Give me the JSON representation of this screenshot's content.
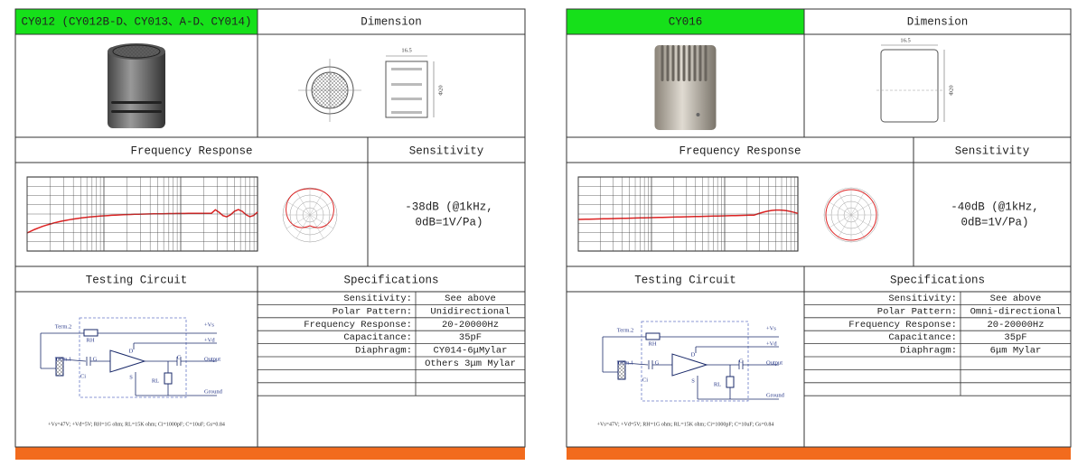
{
  "products": [
    {
      "model": "CY012 (CY012B-D、CY013、A-D、CY014)",
      "dimension_heading": "Dimension",
      "dimension_labels": [
        "16.5",
        "Φ20"
      ],
      "frequency_heading": "Frequency Response",
      "sensitivity_heading": "Sensitivity",
      "sensitivity": [
        "-38dB (@1kHz,",
        "0dB=1V/Pa)"
      ],
      "circuit_heading": "Testing Circuit",
      "specs_heading": "Specifications",
      "specs": [
        {
          "label": "Sensitivity:",
          "value": "See above"
        },
        {
          "label": "Polar Pattern:",
          "value": "Unidirectional"
        },
        {
          "label": "Frequency Response:",
          "value": "20-20000Hz"
        },
        {
          "label": "Capacitance:",
          "value": "35pF"
        },
        {
          "label": "Diaphragm:",
          "value": "CY014-6μMylar"
        },
        {
          "value": "Others 3μm Mylar"
        }
      ],
      "circuit_labels": [
        "Term.2",
        "RH",
        "+Vs",
        "+Vd",
        "Term.1",
        "G",
        "D",
        "C",
        "Output",
        "Ci",
        "S",
        "RL",
        "Ground"
      ],
      "circuit_note": "+Vs=47V; +Vd=5V; RH=1G ohm; RL=15K ohm; Ci=1000pF; C=10uF; Gs=0.84"
    },
    {
      "model": "CY016",
      "dimension_heading": "Dimension",
      "dimension_labels": [
        "16.5",
        "Φ20"
      ],
      "frequency_heading": "Frequency Response",
      "sensitivity_heading": "Sensitivity",
      "sensitivity": [
        "-40dB (@1kHz,",
        "0dB=1V/Pa)"
      ],
      "circuit_heading": "Testing Circuit",
      "specs_heading": "Specifications",
      "specs": [
        {
          "label": "Sensitivity:",
          "value": "See above"
        },
        {
          "label": "Polar Pattern:",
          "value": "Omni-directional"
        },
        {
          "label": "Frequency Response:",
          "value": "20-20000Hz"
        },
        {
          "label": "Capacitance:",
          "value": "35pF"
        },
        {
          "label": "Diaphragm:",
          "value": "6μm Mylar"
        }
      ],
      "circuit_labels": [
        "Term.2",
        "RH",
        "+Vs",
        "+Vd",
        "Term.1",
        "G",
        "D",
        "C",
        "Output",
        "Ci",
        "S",
        "RL",
        "Ground"
      ],
      "circuit_note": "+Vs=47V; +Vd=5V; RH=1G ohm; RL=15K ohm; Ci=1000pF; C=10uF; Gs=0.84"
    }
  ]
}
